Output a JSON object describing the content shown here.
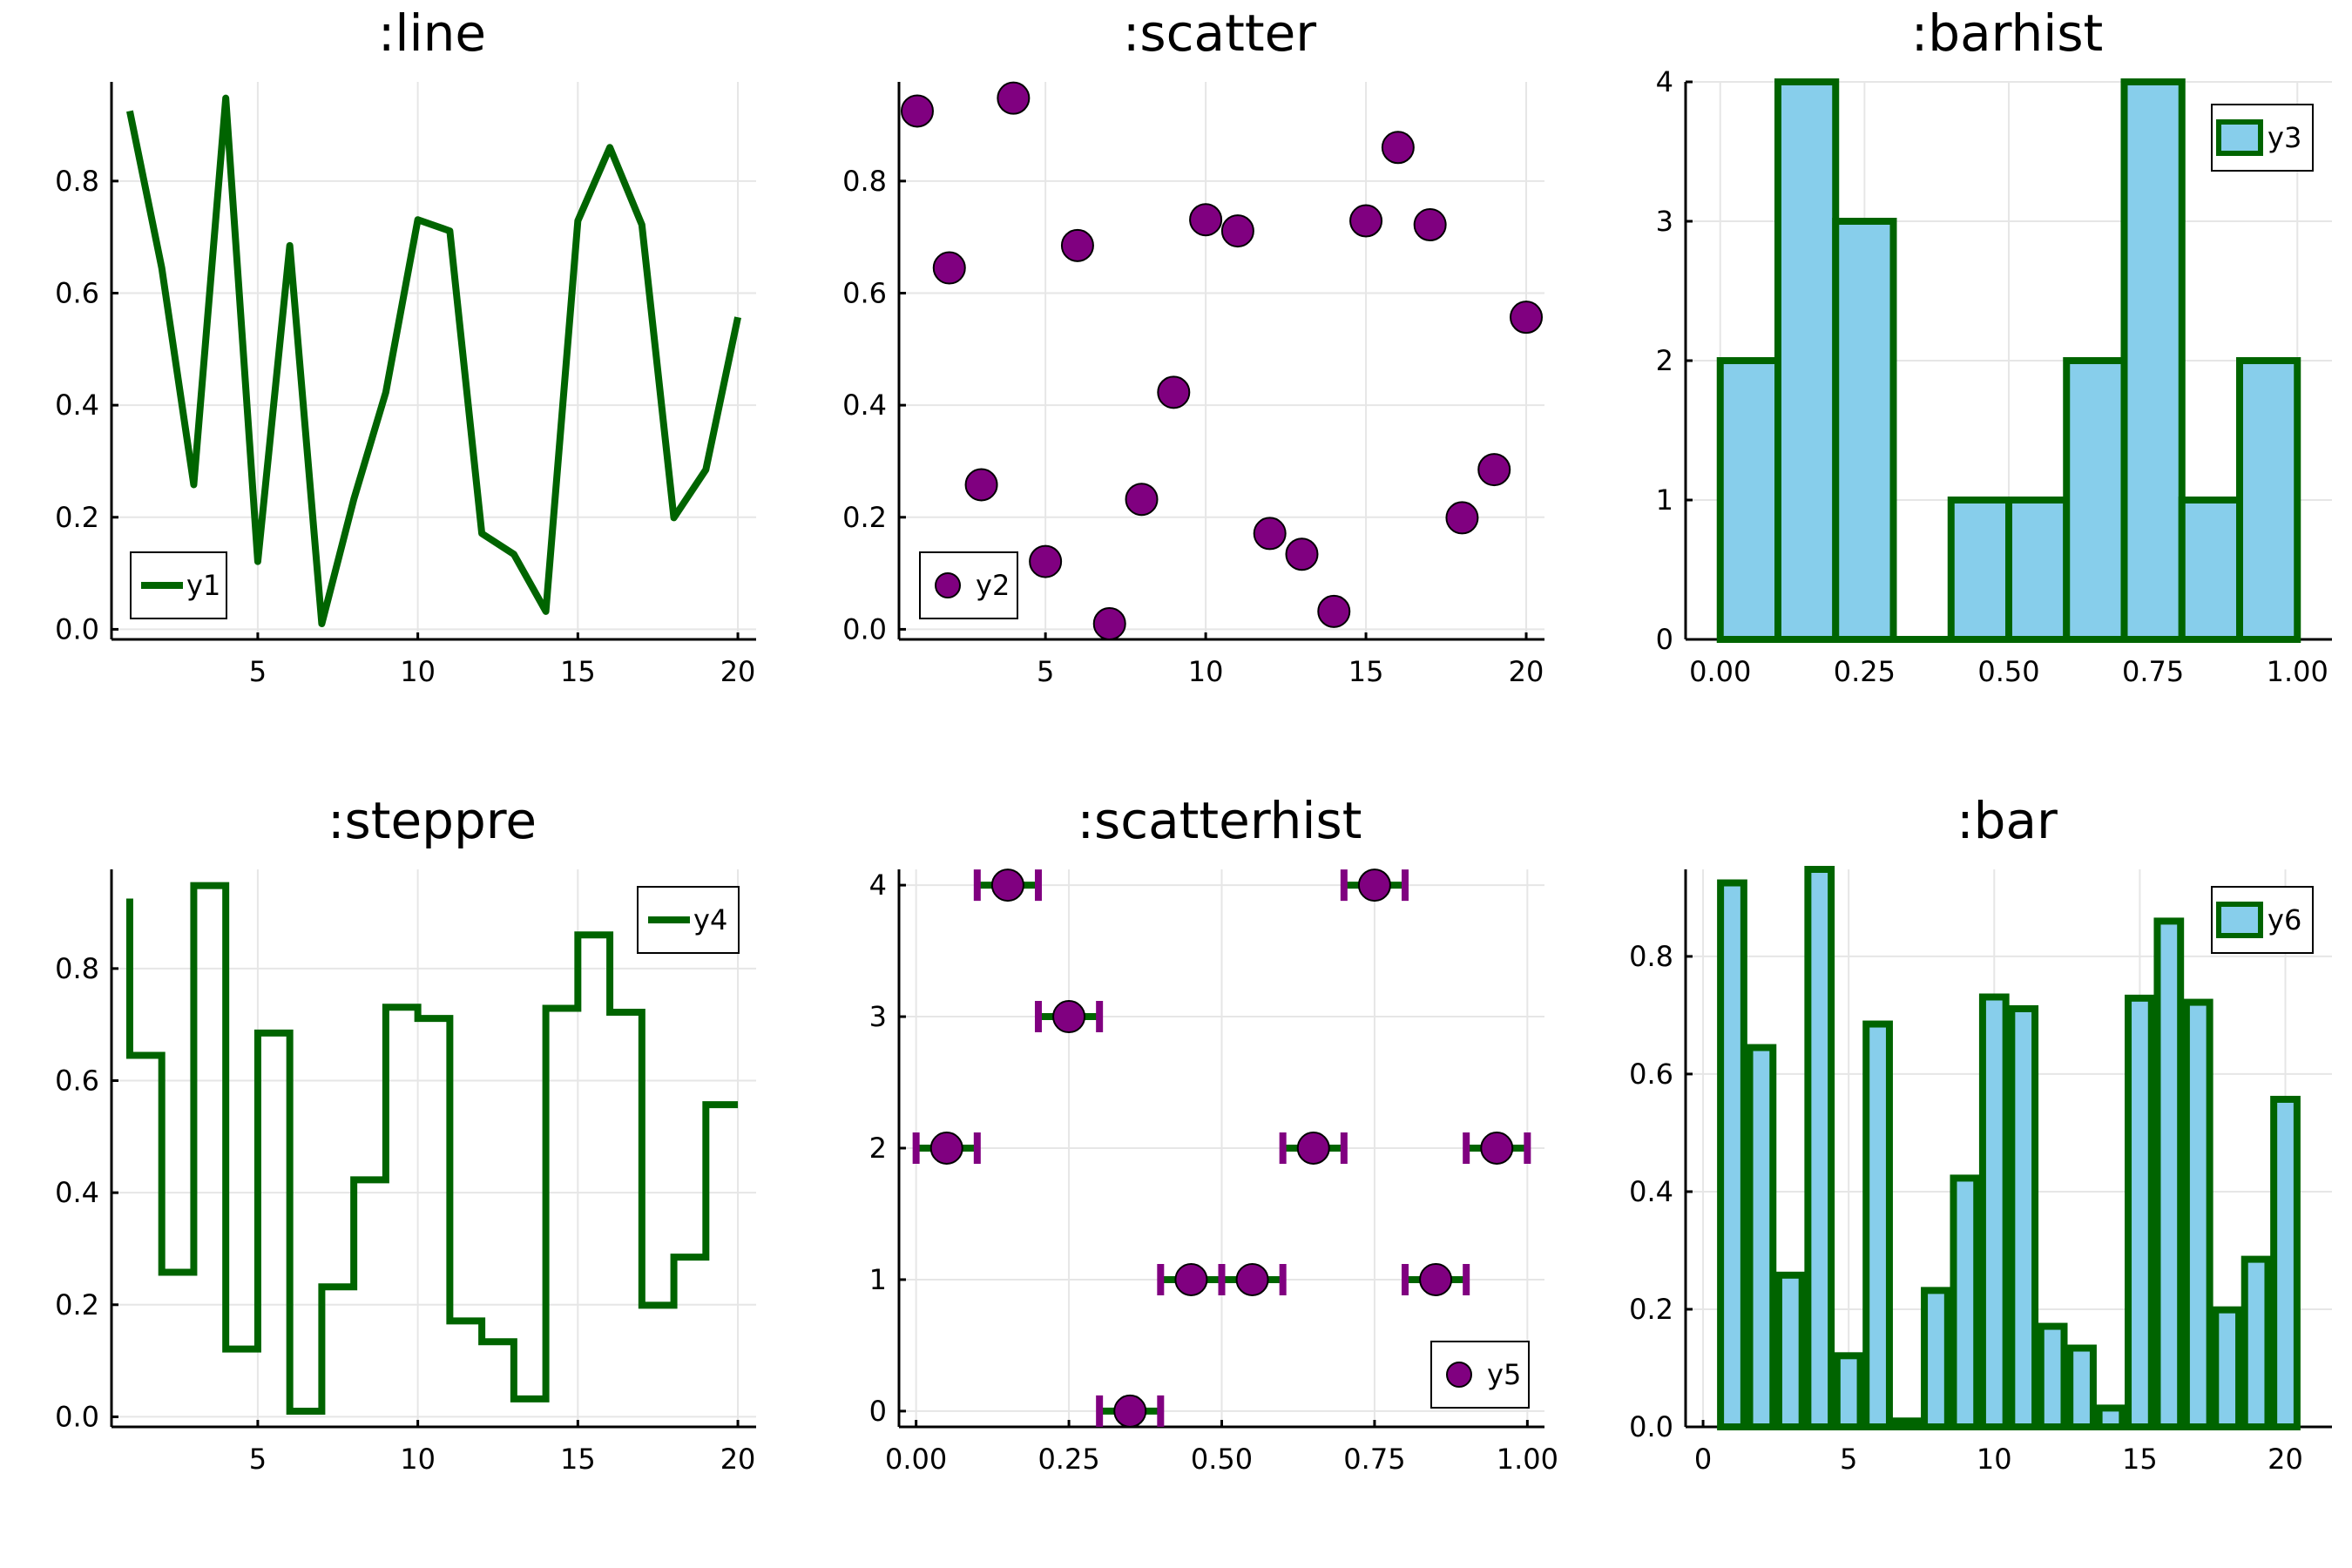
{
  "chart_data": [
    {
      "type": "line",
      "title": ":line",
      "x": [
        1,
        2,
        3,
        4,
        5,
        6,
        7,
        8,
        9,
        10,
        11,
        12,
        13,
        14,
        15,
        16,
        17,
        18,
        19,
        20
      ],
      "series": [
        {
          "name": "y1",
          "values": [
            0.925,
            0.645,
            0.258,
            0.948,
            0.121,
            0.685,
            0.01,
            0.232,
            0.423,
            0.731,
            0.711,
            0.171,
            0.134,
            0.032,
            0.729,
            0.86,
            0.722,
            0.199,
            0.285,
            0.557
          ]
        }
      ],
      "xlim": [
        0.43,
        20.57
      ],
      "ylim": [
        -0.018,
        0.977
      ],
      "xticks": [
        5,
        10,
        15,
        20
      ],
      "yticks": [
        0.0,
        0.2,
        0.4,
        0.6,
        0.8
      ],
      "grid": true,
      "legend": "bottom-left",
      "color": "#006400"
    },
    {
      "type": "scatter",
      "title": ":scatter",
      "x": [
        1,
        2,
        3,
        4,
        5,
        6,
        7,
        8,
        9,
        10,
        11,
        12,
        13,
        14,
        15,
        16,
        17,
        18,
        19,
        20
      ],
      "series": [
        {
          "name": "y2",
          "values": [
            0.925,
            0.645,
            0.258,
            0.948,
            0.121,
            0.685,
            0.01,
            0.232,
            0.423,
            0.731,
            0.711,
            0.171,
            0.134,
            0.032,
            0.729,
            0.86,
            0.722,
            0.199,
            0.285,
            0.557
          ]
        }
      ],
      "xlim": [
        0.43,
        20.57
      ],
      "ylim": [
        -0.018,
        0.977
      ],
      "xticks": [
        5,
        10,
        15,
        20
      ],
      "yticks": [
        0.0,
        0.2,
        0.4,
        0.6,
        0.8
      ],
      "grid": true,
      "legend": "bottom-left",
      "color": "#800080"
    },
    {
      "type": "bar",
      "subtype": "histogram",
      "title": ":barhist",
      "bin_edges": [
        0.0,
        0.1,
        0.2,
        0.3,
        0.4,
        0.5,
        0.6,
        0.7,
        0.8,
        0.9,
        1.0
      ],
      "series": [
        {
          "name": "y3",
          "values": [
            2,
            4,
            3,
            0,
            1,
            1,
            2,
            4,
            1,
            2
          ]
        }
      ],
      "xlim": [
        -0.06,
        1.06
      ],
      "ylim": [
        0,
        4
      ],
      "xticks": [
        0.0,
        0.25,
        0.5,
        0.75,
        1.0
      ],
      "xticklabels": [
        "0.00",
        "0.25",
        "0.50",
        "0.75",
        "1.00"
      ],
      "yticks": [
        0,
        1,
        2,
        3,
        4
      ],
      "grid": true,
      "legend": "top-right",
      "fill": "#87ceeb",
      "stroke": "#006400"
    },
    {
      "type": "line",
      "subtype": "steppre",
      "title": ":steppre",
      "x": [
        1,
        2,
        3,
        4,
        5,
        6,
        7,
        8,
        9,
        10,
        11,
        12,
        13,
        14,
        15,
        16,
        17,
        18,
        19,
        20
      ],
      "series": [
        {
          "name": "y4",
          "values": [
            0.925,
            0.645,
            0.258,
            0.948,
            0.121,
            0.685,
            0.01,
            0.232,
            0.423,
            0.731,
            0.711,
            0.171,
            0.134,
            0.032,
            0.729,
            0.86,
            0.722,
            0.199,
            0.285,
            0.557
          ]
        }
      ],
      "xlim": [
        0.43,
        20.57
      ],
      "ylim": [
        -0.018,
        0.977
      ],
      "xticks": [
        5,
        10,
        15,
        20
      ],
      "yticks": [
        0.0,
        0.2,
        0.4,
        0.6,
        0.8
      ],
      "grid": true,
      "legend": "top-right",
      "color": "#006400"
    },
    {
      "type": "scatter",
      "subtype": "scatterhist",
      "title": ":scatterhist",
      "points": [
        {
          "x": 0.05,
          "y": 2
        },
        {
          "x": 0.15,
          "y": 4
        },
        {
          "x": 0.25,
          "y": 3
        },
        {
          "x": 0.35,
          "y": 0
        },
        {
          "x": 0.45,
          "y": 1
        },
        {
          "x": 0.55,
          "y": 1
        },
        {
          "x": 0.65,
          "y": 2
        },
        {
          "x": 0.75,
          "y": 4
        },
        {
          "x": 0.85,
          "y": 1
        },
        {
          "x": 0.95,
          "y": 2
        }
      ],
      "bin_half_width": 0.05,
      "series_name": "y5",
      "xlim": [
        -0.028,
        1.028
      ],
      "ylim": [
        -0.12,
        4.12
      ],
      "xticks": [
        0.0,
        0.25,
        0.5,
        0.75,
        1.0
      ],
      "xticklabels": [
        "0.00",
        "0.25",
        "0.50",
        "0.75",
        "1.00"
      ],
      "yticks": [
        0,
        1,
        2,
        3,
        4
      ],
      "grid": true,
      "legend": "bottom-right",
      "color": "#800080",
      "errorbar_color": "#800080",
      "errorbar_line": "#006400"
    },
    {
      "type": "bar",
      "title": ":bar",
      "x": [
        1,
        2,
        3,
        4,
        5,
        6,
        7,
        8,
        9,
        10,
        11,
        12,
        13,
        14,
        15,
        16,
        17,
        18,
        19,
        20
      ],
      "series": [
        {
          "name": "y6",
          "values": [
            0.925,
            0.645,
            0.258,
            0.948,
            0.121,
            0.685,
            0.01,
            0.232,
            0.423,
            0.731,
            0.711,
            0.171,
            0.134,
            0.032,
            0.729,
            0.86,
            0.722,
            0.199,
            0.285,
            0.557
          ]
        }
      ],
      "xlim": [
        -0.6,
        21.6
      ],
      "ylim": [
        0,
        0.948
      ],
      "xticks": [
        0,
        5,
        10,
        15,
        20
      ],
      "yticks": [
        0.0,
        0.2,
        0.4,
        0.6,
        0.8
      ],
      "grid": true,
      "legend": "top-right",
      "fill": "#87ceeb",
      "stroke": "#006400"
    }
  ]
}
